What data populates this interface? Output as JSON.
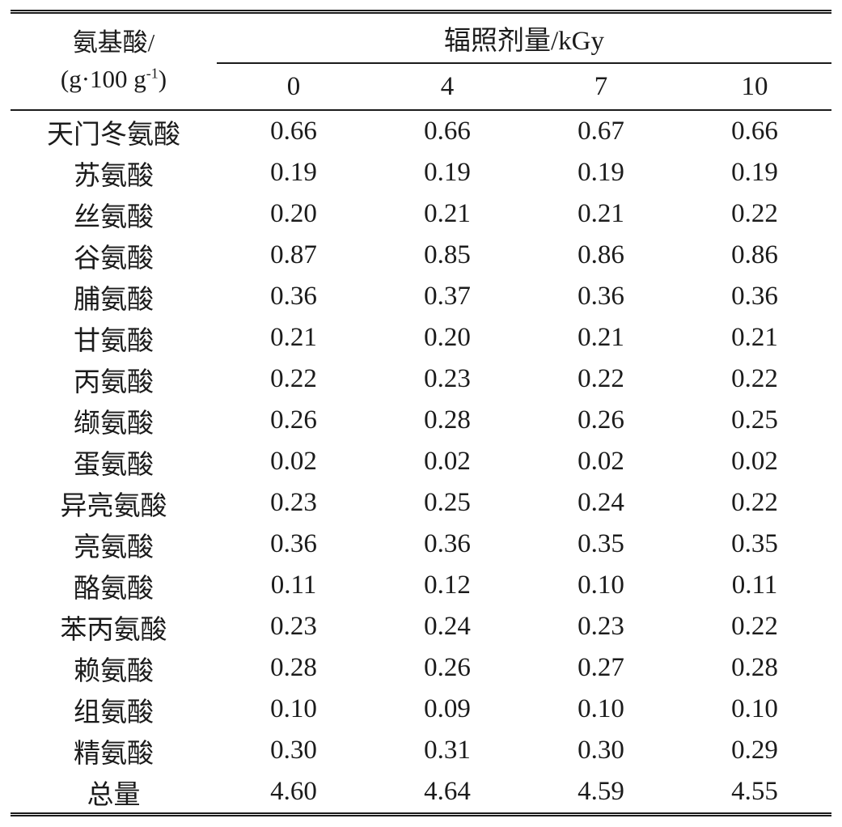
{
  "table": {
    "stub_header_line1": "氨基酸/",
    "stub_unit_prefix": "(g·100 g",
    "stub_unit_sup": "-1",
    "stub_unit_suffix": ")",
    "spanner_header": "辐照剂量/kGy",
    "dose_columns": [
      "0",
      "4",
      "7",
      "10"
    ],
    "rows": [
      {
        "label": "天门冬氨酸",
        "values": [
          "0.66",
          "0.66",
          "0.67",
          "0.66"
        ]
      },
      {
        "label": "苏氨酸",
        "values": [
          "0.19",
          "0.19",
          "0.19",
          "0.19"
        ]
      },
      {
        "label": "丝氨酸",
        "values": [
          "0.20",
          "0.21",
          "0.21",
          "0.22"
        ]
      },
      {
        "label": "谷氨酸",
        "values": [
          "0.87",
          "0.85",
          "0.86",
          "0.86"
        ]
      },
      {
        "label": "脯氨酸",
        "values": [
          "0.36",
          "0.37",
          "0.36",
          "0.36"
        ]
      },
      {
        "label": "甘氨酸",
        "values": [
          "0.21",
          "0.20",
          "0.21",
          "0.21"
        ]
      },
      {
        "label": "丙氨酸",
        "values": [
          "0.22",
          "0.23",
          "0.22",
          "0.22"
        ]
      },
      {
        "label": "缬氨酸",
        "values": [
          "0.26",
          "0.28",
          "0.26",
          "0.25"
        ]
      },
      {
        "label": "蛋氨酸",
        "values": [
          "0.02",
          "0.02",
          "0.02",
          "0.02"
        ]
      },
      {
        "label": "异亮氨酸",
        "values": [
          "0.23",
          "0.25",
          "0.24",
          "0.22"
        ]
      },
      {
        "label": "亮氨酸",
        "values": [
          "0.36",
          "0.36",
          "0.35",
          "0.35"
        ]
      },
      {
        "label": "酪氨酸",
        "values": [
          "0.11",
          "0.12",
          "0.10",
          "0.11"
        ]
      },
      {
        "label": "苯丙氨酸",
        "values": [
          "0.23",
          "0.24",
          "0.23",
          "0.22"
        ]
      },
      {
        "label": "赖氨酸",
        "values": [
          "0.28",
          "0.26",
          "0.27",
          "0.28"
        ]
      },
      {
        "label": "组氨酸",
        "values": [
          "0.10",
          "0.09",
          "0.10",
          "0.10"
        ]
      },
      {
        "label": "精氨酸",
        "values": [
          "0.30",
          "0.31",
          "0.30",
          "0.29"
        ]
      },
      {
        "label": "总量",
        "values": [
          "4.60",
          "4.64",
          "4.59",
          "4.55"
        ]
      }
    ],
    "colors": {
      "rule": "#1b1b1b",
      "text": "#1b1b1b",
      "background": "#ffffff"
    }
  }
}
